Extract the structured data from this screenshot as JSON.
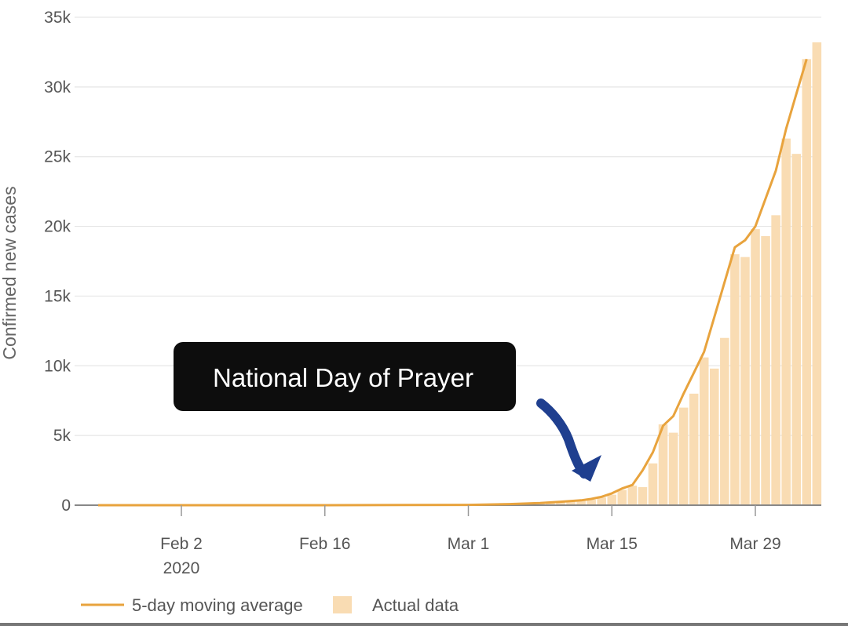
{
  "chart_data": {
    "type": "bar",
    "ylabel": "Confirmed new cases",
    "ylim": [
      0,
      35000
    ],
    "y_ticks": [
      0,
      5000,
      10000,
      15000,
      20000,
      25000,
      30000,
      35000
    ],
    "y_tick_labels": [
      "0",
      "5k",
      "10k",
      "15k",
      "20k",
      "25k",
      "30k",
      "35k"
    ],
    "x_ticks": [
      {
        "date": "2020-02-02",
        "label": "Feb 2",
        "sublabel": "2020"
      },
      {
        "date": "2020-02-16",
        "label": "Feb 16",
        "sublabel": ""
      },
      {
        "date": "2020-03-01",
        "label": "Mar 1",
        "sublabel": ""
      },
      {
        "date": "2020-03-15",
        "label": "Mar 15",
        "sublabel": ""
      },
      {
        "date": "2020-03-29",
        "label": "Mar 29",
        "sublabel": ""
      }
    ],
    "xlim": [
      "2020-01-22",
      "2020-04-04"
    ],
    "grid": true,
    "legend_position": "bottom-left",
    "legend": [
      {
        "label": "5-day moving average",
        "kind": "line",
        "color": "#e8a33d"
      },
      {
        "label": "Actual data",
        "kind": "bar",
        "color": "#f9dcb3"
      }
    ],
    "series": [
      {
        "name": "Actual data",
        "kind": "bar",
        "color": "#f9dcb3",
        "points": [
          [
            "2020-03-05",
            50
          ],
          [
            "2020-03-06",
            80
          ],
          [
            "2020-03-07",
            100
          ],
          [
            "2020-03-08",
            120
          ],
          [
            "2020-03-09",
            150
          ],
          [
            "2020-03-10",
            200
          ],
          [
            "2020-03-11",
            300
          ],
          [
            "2020-03-12",
            350
          ],
          [
            "2020-03-13",
            400
          ],
          [
            "2020-03-14",
            550
          ],
          [
            "2020-03-15",
            750
          ],
          [
            "2020-03-16",
            1100
          ],
          [
            "2020-03-17",
            1400
          ],
          [
            "2020-03-18",
            1300
          ],
          [
            "2020-03-19",
            3000
          ],
          [
            "2020-03-20",
            5800
          ],
          [
            "2020-03-21",
            5200
          ],
          [
            "2020-03-22",
            7000
          ],
          [
            "2020-03-23",
            8000
          ],
          [
            "2020-03-24",
            10600
          ],
          [
            "2020-03-25",
            9800
          ],
          [
            "2020-03-26",
            12000
          ],
          [
            "2020-03-27",
            18000
          ],
          [
            "2020-03-28",
            17800
          ],
          [
            "2020-03-29",
            19800
          ],
          [
            "2020-03-30",
            19300
          ],
          [
            "2020-03-31",
            20800
          ],
          [
            "2020-04-01",
            26300
          ],
          [
            "2020-04-02",
            25200
          ],
          [
            "2020-04-03",
            32000
          ],
          [
            "2020-04-04",
            33200
          ]
        ]
      },
      {
        "name": "5-day moving average",
        "kind": "line",
        "color": "#e8a33d",
        "points": [
          [
            "2020-01-22",
            0
          ],
          [
            "2020-02-02",
            0
          ],
          [
            "2020-02-16",
            0
          ],
          [
            "2020-03-01",
            20
          ],
          [
            "2020-03-05",
            80
          ],
          [
            "2020-03-08",
            150
          ],
          [
            "2020-03-10",
            250
          ],
          [
            "2020-03-12",
            350
          ],
          [
            "2020-03-13",
            450
          ],
          [
            "2020-03-14",
            600
          ],
          [
            "2020-03-15",
            850
          ],
          [
            "2020-03-16",
            1200
          ],
          [
            "2020-03-17",
            1450
          ],
          [
            "2020-03-18",
            2500
          ],
          [
            "2020-03-19",
            3800
          ],
          [
            "2020-03-20",
            5700
          ],
          [
            "2020-03-21",
            6400
          ],
          [
            "2020-03-22",
            8000
          ],
          [
            "2020-03-23",
            9500
          ],
          [
            "2020-03-24",
            11000
          ],
          [
            "2020-03-25",
            13500
          ],
          [
            "2020-03-26",
            16000
          ],
          [
            "2020-03-27",
            18500
          ],
          [
            "2020-03-28",
            19000
          ],
          [
            "2020-03-29",
            20000
          ],
          [
            "2020-03-30",
            22000
          ],
          [
            "2020-03-31",
            24000
          ],
          [
            "2020-04-01",
            27000
          ],
          [
            "2020-04-02",
            29500
          ],
          [
            "2020-04-03",
            32000
          ]
        ]
      }
    ],
    "annotations": [
      {
        "text": "National Day of Prayer",
        "date": "2020-03-15",
        "value": 600,
        "arrow_color": "#1f3f8f",
        "box_color": "#0d0d0d"
      }
    ]
  }
}
